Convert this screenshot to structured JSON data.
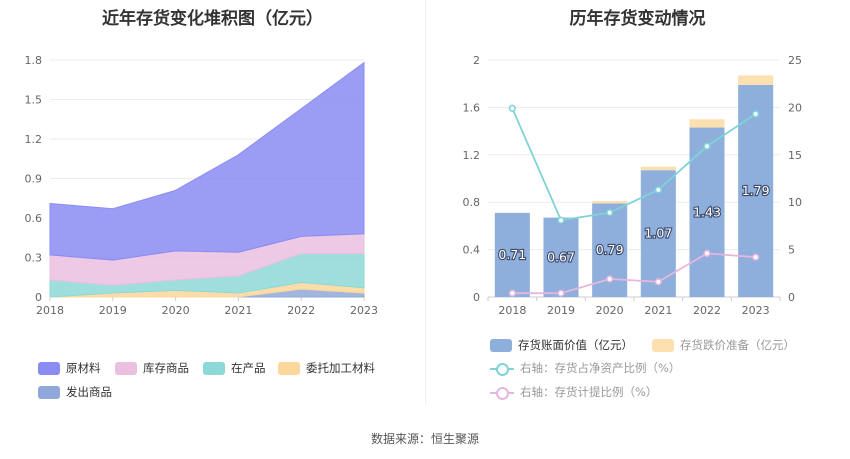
{
  "left_chart": {
    "title": "近年存货变化堆积图（亿元）",
    "chart_data": {
      "type": "area",
      "stacked": true,
      "categories": [
        "2018",
        "2019",
        "2020",
        "2021",
        "2022",
        "2023"
      ],
      "y_ticks": [
        "0",
        "0.3",
        "0.6",
        "0.9",
        "1.2",
        "1.5",
        "1.8"
      ],
      "ylim": [
        0,
        1.8
      ],
      "grid": true,
      "legend_position": "bottom",
      "series": [
        {
          "name": "发出商品",
          "color": "#8fa8d9",
          "values": [
            0.0,
            0.0,
            0.0,
            0.0,
            0.06,
            0.03
          ]
        },
        {
          "name": "委托加工材料",
          "color": "#fbd79b",
          "values": [
            0.0,
            0.03,
            0.05,
            0.03,
            0.05,
            0.04
          ]
        },
        {
          "name": "在产品",
          "color": "#8dd9d8",
          "values": [
            0.13,
            0.06,
            0.08,
            0.13,
            0.22,
            0.26
          ]
        },
        {
          "name": "库存商品",
          "color": "#ebbfe0",
          "values": [
            0.19,
            0.19,
            0.22,
            0.18,
            0.13,
            0.15
          ]
        },
        {
          "name": "原材料",
          "color": "#8a8cf2",
          "values": [
            0.39,
            0.39,
            0.46,
            0.74,
            0.97,
            1.3
          ]
        }
      ]
    }
  },
  "right_chart": {
    "title": "历年存货变动情况",
    "chart_data": {
      "type": "bar",
      "categories": [
        "2018",
        "2019",
        "2020",
        "2021",
        "2022",
        "2023"
      ],
      "left_y_ticks": [
        "0",
        "0.4",
        "0.8",
        "1.2",
        "1.6",
        "2"
      ],
      "right_y_ticks": [
        "0",
        "5",
        "10",
        "15",
        "20",
        "25"
      ],
      "ylim": [
        0,
        2
      ],
      "y2lim": [
        0,
        25
      ],
      "grid": true,
      "legend_position": "bottom",
      "series": [
        {
          "name": "存货账面价值（亿元）",
          "kind": "bar",
          "color": "#8eaedc",
          "values": [
            0.71,
            0.67,
            0.79,
            1.07,
            1.43,
            1.79
          ],
          "labels": [
            "0.71",
            "0.67",
            "0.79",
            "1.07",
            "1.43",
            "1.79"
          ]
        },
        {
          "name": "存货跌价准备（亿元）",
          "kind": "bar-stack",
          "color": "#fde0b0",
          "values": [
            0.0,
            0.0,
            0.02,
            0.03,
            0.07,
            0.08
          ]
        },
        {
          "name": "右轴：存货占净资产比例（%）",
          "kind": "line",
          "axis": "right",
          "color": "#7fd3d6",
          "values": [
            19.9,
            8.1,
            8.9,
            11.3,
            15.9,
            19.3
          ]
        },
        {
          "name": "右轴：存货计提比例（%）",
          "kind": "line",
          "axis": "right",
          "color": "#e7b6de",
          "values": [
            0.4,
            0.4,
            1.9,
            1.6,
            4.6,
            4.2
          ]
        }
      ]
    }
  },
  "source_text": "数据来源：恒生聚源"
}
